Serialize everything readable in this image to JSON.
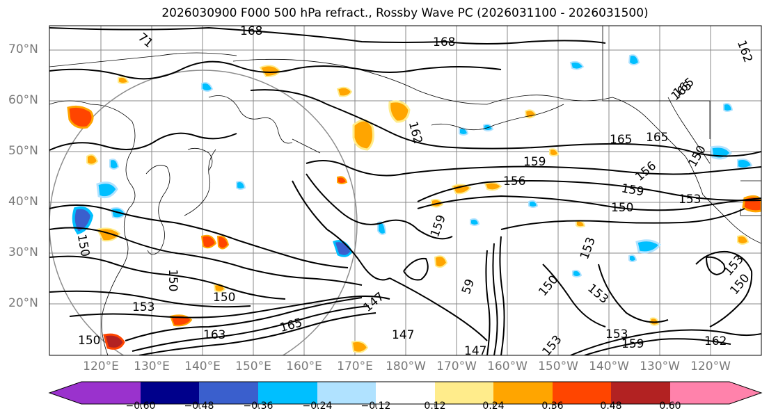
{
  "title": "2026030900 F000 500 hPa refract., Rossby Wave PC (2026031100 - 2026031500)",
  "lat_labels": [
    "70°N",
    "60°N",
    "50°N",
    "40°N",
    "30°N",
    "20°N"
  ],
  "lon_labels": [
    "120°E",
    "130°E",
    "140°E",
    "150°E",
    "160°E",
    "170°E",
    "180°W",
    "170°W",
    "160°W",
    "150°W",
    "140°W",
    "130°W",
    "120°W"
  ],
  "colorbar": {
    "ticks": [
      "−0.60",
      "−0.48",
      "−0.36",
      "−0.24",
      "−0.12",
      "0.12",
      "0.24",
      "0.36",
      "0.48",
      "0.60"
    ],
    "colors": [
      "#9a32cd",
      "#00008b",
      "#3a5fcd",
      "#00bfff",
      "#b0e2ff",
      "#ffffff",
      "#ffec8b",
      "#ffa500",
      "#ff4500",
      "#b22222",
      "#ff82ab"
    ]
  },
  "contour_labels": [
    "168",
    "168",
    "162",
    "165",
    "165",
    "165",
    "159",
    "156",
    "156",
    "159",
    "153",
    "150",
    "159",
    "153",
    "153",
    "150",
    "153",
    "150",
    "150",
    "147",
    "147",
    "147",
    "165",
    "153",
    "150",
    "163",
    "150",
    "165",
    "162",
    "153",
    "159",
    "153",
    "162",
    "150",
    "150",
    "59",
    "71"
  ],
  "colors": {
    "grid": "#888888",
    "contour": "#000000",
    "coast": "#000000",
    "axis_label": "#7a7a7a"
  }
}
